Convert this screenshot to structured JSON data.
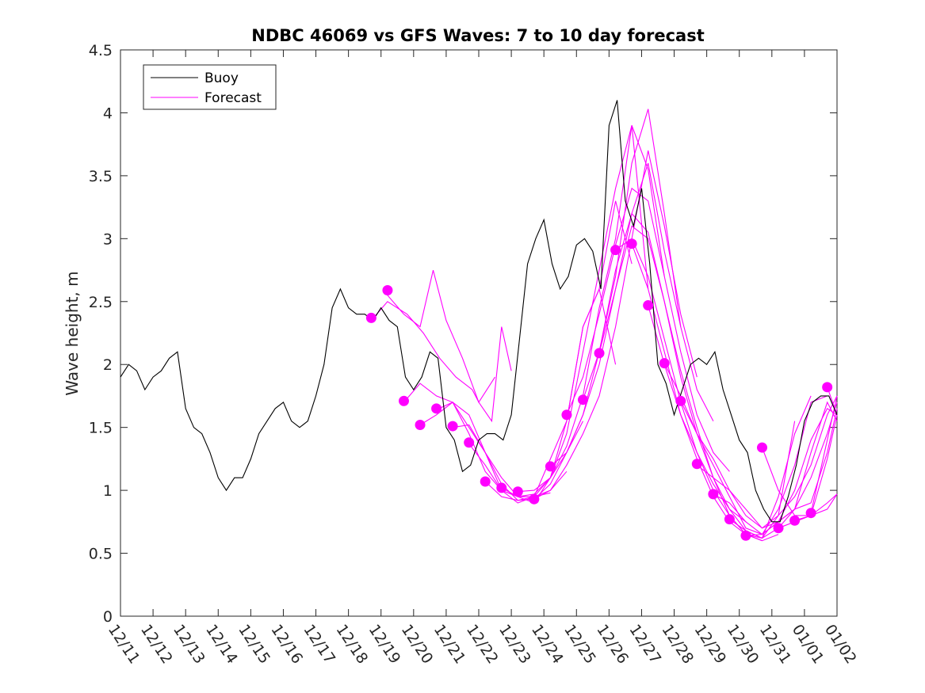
{
  "chart_data": {
    "type": "line",
    "title": "NDBC 46069 vs GFS Waves: 7 to 10 day forecast",
    "xlabel": "",
    "ylabel": "Wave height, m",
    "xlim": [
      0,
      22
    ],
    "ylim": [
      0,
      4.5
    ],
    "x_ticks": [
      0,
      1,
      2,
      3,
      4,
      5,
      6,
      7,
      8,
      9,
      10,
      11,
      12,
      13,
      14,
      15,
      16,
      17,
      18,
      19,
      20,
      21,
      22
    ],
    "x_tick_labels": [
      "12/11",
      "12/12",
      "12/13",
      "12/14",
      "12/15",
      "12/16",
      "12/17",
      "12/18",
      "12/19",
      "12/20",
      "12/21",
      "12/22",
      "12/23",
      "12/24",
      "12/25",
      "12/26",
      "12/27",
      "12/28",
      "12/29",
      "12/30",
      "12/31",
      "01/01",
      "01/02"
    ],
    "y_ticks": [
      0,
      0.5,
      1,
      1.5,
      2,
      2.5,
      3,
      3.5,
      4,
      4.5
    ],
    "y_tick_labels": [
      "0",
      "0.5",
      "1",
      "1.5",
      "2",
      "2.5",
      "3",
      "3.5",
      "4",
      "4.5"
    ],
    "grid": false,
    "legend_position": "top-left",
    "legend": [
      {
        "name": "Buoy",
        "color": "#000000"
      },
      {
        "name": "Forecast",
        "color": "#ff00ff"
      }
    ],
    "buoy_color": "#000000",
    "forecast_color": "#ff00ff",
    "buoy_series": {
      "name": "Buoy",
      "x": [
        0,
        0.25,
        0.5,
        0.75,
        1,
        1.25,
        1.5,
        1.75,
        2,
        2.25,
        2.5,
        2.75,
        3,
        3.25,
        3.5,
        3.75,
        4,
        4.25,
        4.5,
        4.75,
        5,
        5.25,
        5.5,
        5.75,
        6,
        6.25,
        6.5,
        6.75,
        7,
        7.25,
        7.5,
        7.75,
        8,
        8.25,
        8.5,
        8.75,
        9,
        9.25,
        9.5,
        9.75,
        10,
        10.25,
        10.5,
        10.75,
        11,
        11.25,
        11.5,
        11.75,
        12,
        12.25,
        12.5,
        12.75,
        13,
        13.25,
        13.5,
        13.75,
        14,
        14.25,
        14.5,
        14.75,
        15,
        15.25,
        15.5,
        15.75,
        16,
        16.25,
        16.5,
        16.75,
        17,
        17.25,
        17.5,
        17.75,
        18,
        18.25,
        18.5,
        18.75,
        19,
        19.25,
        19.5,
        19.75,
        20,
        20.25,
        20.5,
        20.75,
        21,
        21.25,
        21.5,
        21.75,
        22
      ],
      "y": [
        1.9,
        2,
        1.95,
        1.8,
        1.9,
        1.95,
        2.05,
        2.1,
        1.65,
        1.5,
        1.45,
        1.3,
        1.1,
        1.0,
        1.1,
        1.1,
        1.25,
        1.45,
        1.55,
        1.65,
        1.7,
        1.55,
        1.5,
        1.55,
        1.75,
        2.0,
        2.45,
        2.6,
        2.45,
        2.4,
        2.4,
        2.35,
        2.45,
        2.35,
        2.3,
        1.9,
        1.8,
        1.9,
        2.1,
        2.05,
        1.5,
        1.4,
        1.15,
        1.2,
        1.4,
        1.45,
        1.45,
        1.4,
        1.6,
        2.2,
        2.8,
        3.0,
        3.15,
        2.8,
        2.6,
        2.7,
        2.95,
        3.0,
        2.9,
        2.6,
        3.9,
        4.1,
        3.3,
        3.1,
        3.4,
        2.8,
        2.0,
        1.85,
        1.6,
        1.8,
        2.0,
        2.05,
        2.0,
        2.1,
        1.8,
        1.6,
        1.4,
        1.3,
        1.0,
        0.85,
        0.75,
        0.75,
        0.95,
        1.2,
        1.55,
        1.7,
        1.75,
        1.75,
        1.6
      ]
    },
    "forecast_runs": [
      {
        "x": [
          7.7,
          8.2,
          8.8,
          9.3,
          9.8,
          10.3,
          10.8,
          11.0,
          11.5
        ],
        "y": [
          2.35,
          2.5,
          2.4,
          2.25,
          2.05,
          1.9,
          1.8,
          1.7,
          1.9
        ]
      },
      {
        "x": [
          8.2,
          8.7,
          9.2,
          9.6,
          10.0,
          10.5,
          11.0,
          11.4,
          11.7,
          12.0
        ],
        "y": [
          2.55,
          2.4,
          2.3,
          2.75,
          2.35,
          2.05,
          1.7,
          1.55,
          2.3,
          1.95
        ]
      },
      {
        "x": [
          8.7,
          9.2,
          9.7,
          10.2,
          10.7,
          11.2,
          11.7,
          12.2,
          12.7,
          13.2
        ],
        "y": [
          1.7,
          1.85,
          1.75,
          1.7,
          1.5,
          1.3,
          1.1,
          0.95,
          0.95,
          0.98
        ]
      },
      {
        "x": [
          9.2,
          9.7,
          10.2,
          10.7,
          11.2,
          11.7,
          12.2,
          12.7,
          13.2,
          13.7
        ],
        "y": [
          1.52,
          1.6,
          1.7,
          1.45,
          1.15,
          1.0,
          0.9,
          0.95,
          1.0,
          1.15
        ]
      },
      {
        "x": [
          9.7,
          10.2,
          10.7,
          11.2,
          11.7,
          12.2,
          12.7,
          13.2,
          13.7,
          14.2
        ],
        "y": [
          1.64,
          1.7,
          1.6,
          1.3,
          1.05,
          0.92,
          0.93,
          1.05,
          1.3,
          1.55
        ]
      },
      {
        "x": [
          10.2,
          10.7,
          11.2,
          11.7,
          12.2,
          12.7,
          13.2,
          13.7,
          14.2,
          14.7,
          15.2
        ],
        "y": [
          1.5,
          1.52,
          1.3,
          1.0,
          0.95,
          0.9,
          1.1,
          1.55,
          2.3,
          2.6,
          2.0
        ]
      },
      {
        "x": [
          10.7,
          11.2,
          11.7,
          12.2,
          12.7,
          13.2,
          13.7,
          14.2,
          14.7,
          15.2,
          15.7
        ],
        "y": [
          1.37,
          1.2,
          1.0,
          0.95,
          0.95,
          1.25,
          1.55,
          2.3,
          2.6,
          3.3,
          2.8
        ]
      },
      {
        "x": [
          11.2,
          11.7,
          12.2,
          12.7,
          13.2,
          13.7,
          14.2,
          14.7,
          15.2,
          15.7,
          16.2
        ],
        "y": [
          1.07,
          0.95,
          0.92,
          0.95,
          1.1,
          1.45,
          2.1,
          2.75,
          3.4,
          3.9,
          2.6
        ]
      },
      {
        "x": [
          11.7,
          12.2,
          12.7,
          13.2,
          13.7,
          14.2,
          14.7,
          15.2,
          15.7,
          16.2,
          16.7
        ],
        "y": [
          1.02,
          0.95,
          0.97,
          1.1,
          1.35,
          1.75,
          2.45,
          3.0,
          3.9,
          3.55,
          2.7
        ]
      },
      {
        "x": [
          12.2,
          12.7,
          13.2,
          13.7,
          14.2,
          14.7,
          15.2,
          15.7,
          16.2,
          16.7,
          17.2
        ],
        "y": [
          0.99,
          1.0,
          1.1,
          1.3,
          1.6,
          2.1,
          2.7,
          3.6,
          4.03,
          3.2,
          2.3
        ]
      },
      {
        "x": [
          12.7,
          13.2,
          13.7,
          14.2,
          14.7,
          15.2,
          15.7,
          16.2,
          16.7,
          17.2,
          17.7
        ],
        "y": [
          0.93,
          1.0,
          1.2,
          1.45,
          1.75,
          2.3,
          3.0,
          3.7,
          3.1,
          2.4,
          1.9
        ]
      },
      {
        "x": [
          13.2,
          13.7,
          14.2,
          14.7,
          15.2,
          15.7,
          16.2,
          16.7,
          17.2,
          17.7,
          18.2
        ],
        "y": [
          1.19,
          1.3,
          1.6,
          2.0,
          2.6,
          3.2,
          3.6,
          2.9,
          2.3,
          1.8,
          1.55
        ]
      },
      {
        "x": [
          13.7,
          14.2,
          14.7,
          15.2,
          15.7,
          16.2,
          16.7,
          17.2,
          17.7,
          18.2,
          18.7
        ],
        "y": [
          1.6,
          1.9,
          2.4,
          2.95,
          3.4,
          3.3,
          2.7,
          2.1,
          1.6,
          1.3,
          1.15
        ]
      },
      {
        "x": [
          14.2,
          14.7,
          15.2,
          15.7,
          16.2,
          16.7,
          17.2,
          17.7,
          18.2,
          18.7,
          19.2
        ],
        "y": [
          1.72,
          2.1,
          2.75,
          3.2,
          3.05,
          2.5,
          1.9,
          1.45,
          1.1,
          0.85,
          0.75
        ]
      },
      {
        "x": [
          14.7,
          15.2,
          15.7,
          16.2,
          16.7,
          17.2,
          17.7,
          18.2,
          18.7,
          19.2,
          19.7
        ],
        "y": [
          2.09,
          2.6,
          3.1,
          3.0,
          2.5,
          1.95,
          1.5,
          1.1,
          0.8,
          0.65,
          0.6
        ]
      },
      {
        "x": [
          15.2,
          15.7,
          16.2,
          16.7,
          17.2,
          17.7,
          18.2,
          18.7,
          19.2,
          19.7,
          20.2
        ],
        "y": [
          2.91,
          3.0,
          2.7,
          2.2,
          1.7,
          1.3,
          1.0,
          0.8,
          0.65,
          0.6,
          0.65
        ]
      },
      {
        "x": [
          15.7,
          16.2,
          16.7,
          17.2,
          17.7,
          18.2,
          18.7,
          19.2,
          19.7,
          20.2,
          20.7
        ],
        "y": [
          2.96,
          2.6,
          2.1,
          1.6,
          1.25,
          0.95,
          0.75,
          0.65,
          0.62,
          0.8,
          1.55
        ]
      },
      {
        "x": [
          16.2,
          16.7,
          17.2,
          17.7,
          18.2,
          18.7,
          19.2,
          19.7,
          20.2,
          20.7,
          21.2
        ],
        "y": [
          2.47,
          2.0,
          1.6,
          1.3,
          1.05,
          0.85,
          0.68,
          0.62,
          0.95,
          1.45,
          1.75
        ]
      },
      {
        "x": [
          16.7,
          17.2,
          17.7,
          18.2,
          18.7,
          19.2,
          19.7,
          20.2,
          20.7,
          21.2,
          21.7
        ],
        "y": [
          2.01,
          1.75,
          1.45,
          1.2,
          0.95,
          0.7,
          0.65,
          0.85,
          1.2,
          1.7,
          1.75
        ]
      },
      {
        "x": [
          17.2,
          17.7,
          18.2,
          18.7,
          19.2,
          19.7,
          20.2,
          20.7,
          21.2,
          21.7,
          22.0
        ],
        "y": [
          1.71,
          1.45,
          1.25,
          1.0,
          0.8,
          0.7,
          0.75,
          1.0,
          1.4,
          1.65,
          1.6
        ]
      },
      {
        "x": [
          17.7,
          18.2,
          18.7,
          19.2,
          19.7,
          20.2,
          20.7,
          21.2,
          21.7,
          22.0
        ],
        "y": [
          1.2,
          1.1,
          1.0,
          0.85,
          0.7,
          0.8,
          0.95,
          1.2,
          1.6,
          1.75
        ]
      },
      {
        "x": [
          18.2,
          18.7,
          19.2,
          19.7,
          20.2,
          20.7,
          21.2,
          21.7,
          22.0
        ],
        "y": [
          0.97,
          0.9,
          0.75,
          0.65,
          0.75,
          0.85,
          1.3,
          1.7,
          1.55
        ]
      },
      {
        "x": [
          18.7,
          19.2,
          19.7,
          20.2,
          20.7,
          21.2,
          21.7,
          22.0
        ],
        "y": [
          0.77,
          0.68,
          0.62,
          0.7,
          0.85,
          1.1,
          1.45,
          1.7
        ]
      },
      {
        "x": [
          19.2,
          19.7,
          20.2,
          20.7,
          21.2,
          21.7,
          22.0
        ],
        "y": [
          0.64,
          0.65,
          0.75,
          0.85,
          0.9,
          1.3,
          1.65
        ]
      },
      {
        "x": [
          19.7,
          20.2,
          20.7,
          21.2,
          21.7,
          22.0
        ],
        "y": [
          1.34,
          1.0,
          0.8,
          0.8,
          0.85,
          0.97
        ]
      },
      {
        "x": [
          20.2,
          20.7,
          21.2,
          21.7,
          22.0
        ],
        "y": [
          0.7,
          0.75,
          0.8,
          0.9,
          0.97
        ]
      },
      {
        "x": [
          20.7,
          21.2,
          21.7,
          22.0
        ],
        "y": [
          0.76,
          0.8,
          1.25,
          1.6
        ]
      },
      {
        "x": [
          21.2,
          21.7,
          22.0
        ],
        "y": [
          0.82,
          1.4,
          1.75
        ]
      },
      {
        "x": [
          21.7,
          22.0
        ],
        "y": [
          1.82,
          1.6
        ]
      }
    ],
    "forecast_markers": {
      "x": [
        7.7,
        8.2,
        8.7,
        9.2,
        9.7,
        10.2,
        10.7,
        11.2,
        11.7,
        12.2,
        12.7,
        13.2,
        13.7,
        14.2,
        14.7,
        15.2,
        15.7,
        16.2,
        16.7,
        17.2,
        17.7,
        18.2,
        18.7,
        19.2,
        19.7,
        20.2,
        20.7,
        21.2,
        21.7
      ],
      "y": [
        2.37,
        2.59,
        1.71,
        1.52,
        1.65,
        1.51,
        1.38,
        1.07,
        1.02,
        0.99,
        0.93,
        1.19,
        1.6,
        1.72,
        2.09,
        2.91,
        2.96,
        2.47,
        2.01,
        1.71,
        1.21,
        0.97,
        0.77,
        0.64,
        1.34,
        0.7,
        0.76,
        0.82,
        1.82
      ]
    }
  }
}
